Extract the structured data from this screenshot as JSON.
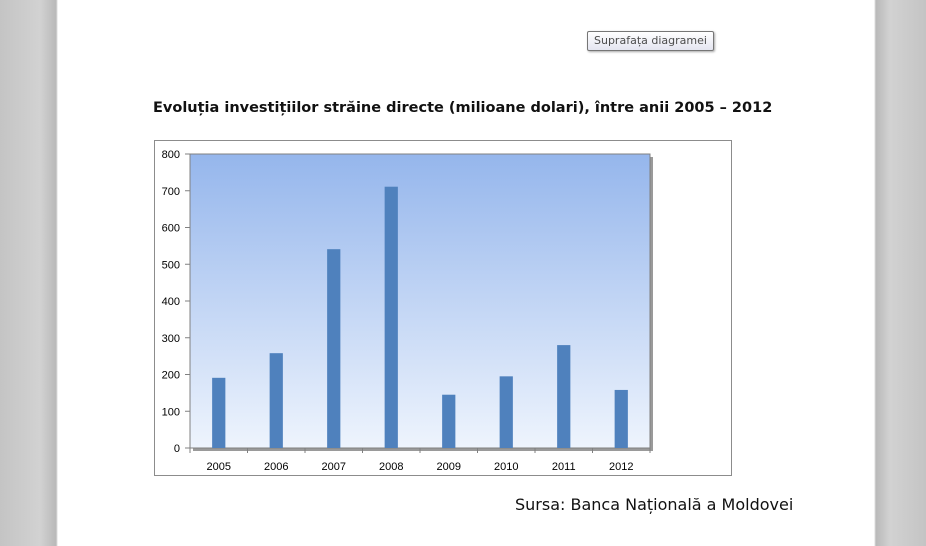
{
  "tooltip": {
    "text": "Suprafața diagramei"
  },
  "chart_data": {
    "type": "bar",
    "title": "Evoluția investițiilor străine directe (milioane dolari), între anii 2005 – 2012",
    "categories": [
      "2005",
      "2006",
      "2007",
      "2008",
      "2009",
      "2010",
      "2011",
      "2012"
    ],
    "values": [
      191,
      258,
      541,
      711,
      145,
      195,
      280,
      158
    ],
    "ylim": [
      0,
      800
    ],
    "yticks": [
      "0",
      "100",
      "200",
      "300",
      "400",
      "500",
      "600",
      "700",
      "800"
    ],
    "xlabel": "",
    "ylabel": "",
    "grid": false,
    "legend": "none",
    "colors": {
      "bar": "#4f81bd",
      "plot_top": "#95b6ec",
      "plot_bottom": "#eef4fd"
    }
  },
  "source": "Sursa: Banca Națională a Moldovei"
}
